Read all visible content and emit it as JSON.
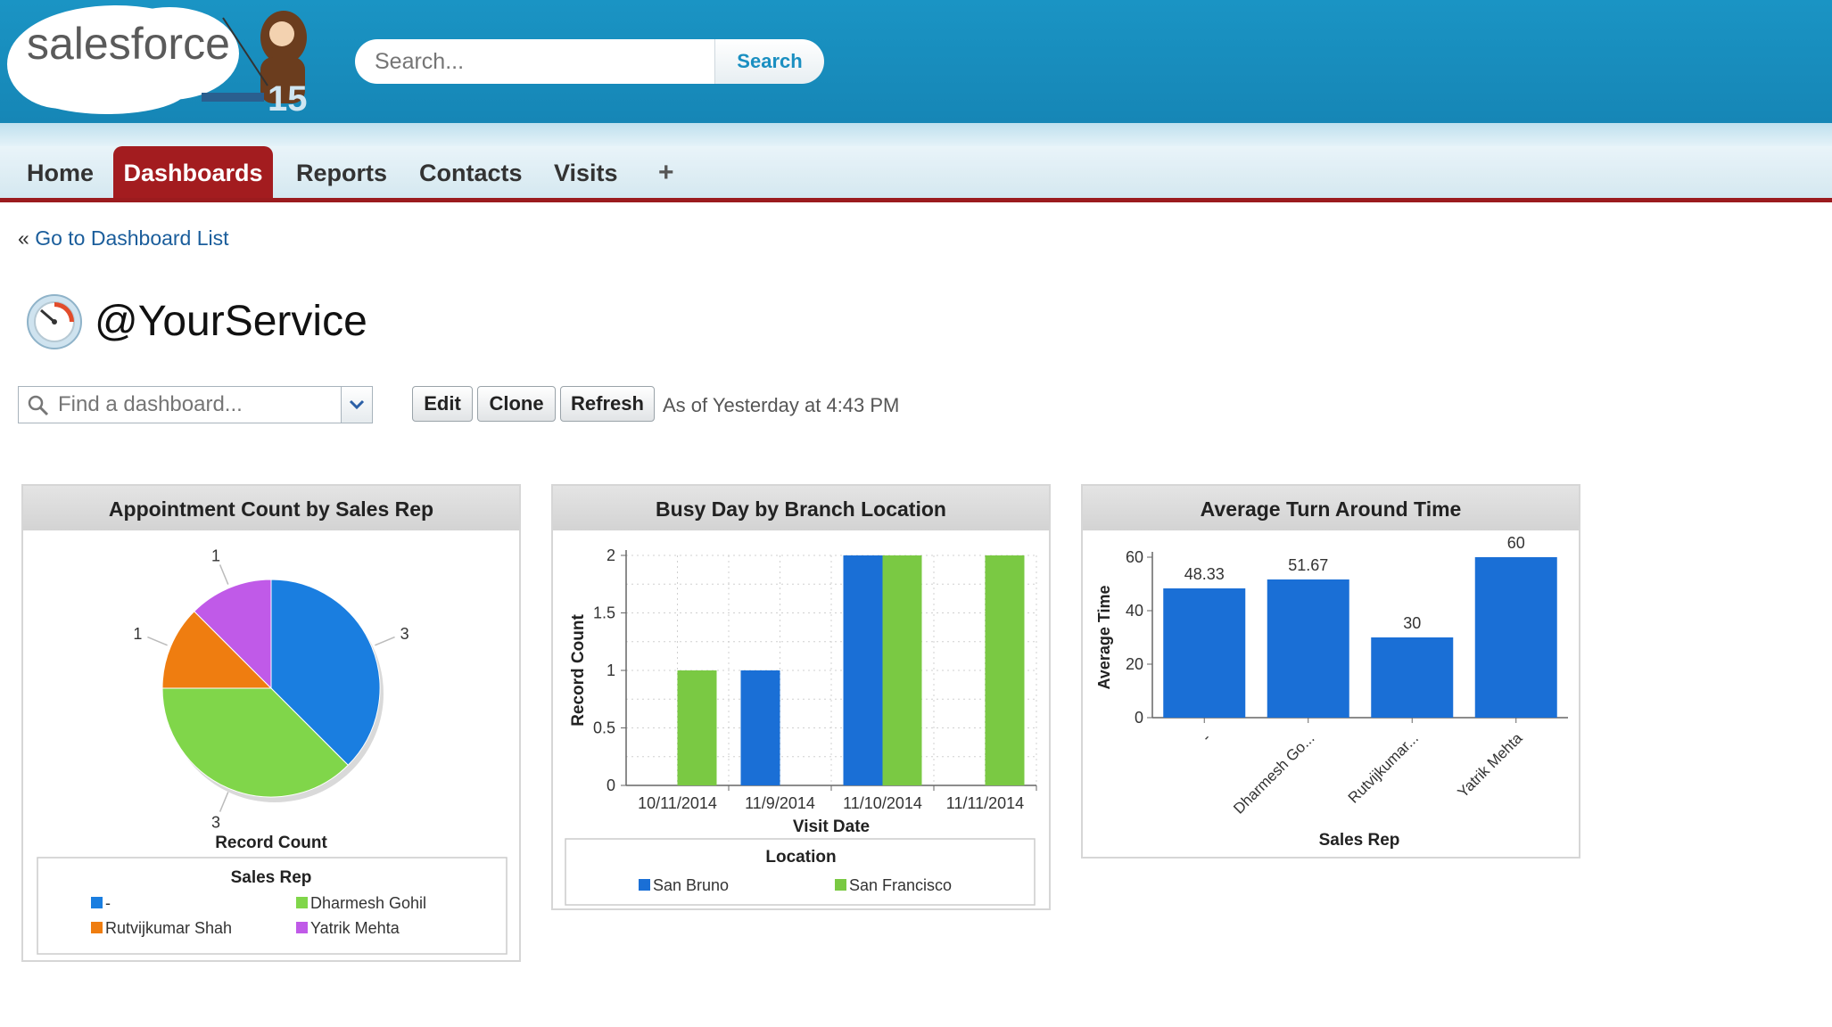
{
  "brand": {
    "logo_text": "salesforce",
    "release_badge": "15"
  },
  "search": {
    "placeholder": "Search...",
    "button_label": "Search"
  },
  "nav": {
    "tabs": [
      {
        "label": "Home"
      },
      {
        "label": "Dashboards"
      },
      {
        "label": "Reports"
      },
      {
        "label": "Contacts"
      },
      {
        "label": "Visits"
      },
      {
        "label": "+"
      }
    ],
    "active": "Dashboards"
  },
  "back_link": {
    "prefix": "«",
    "label": "Go to Dashboard List"
  },
  "page": {
    "title": "@YourService",
    "icon": "dashboard-gauge-icon"
  },
  "toolbar": {
    "find_placeholder": "Find a dashboard...",
    "edit_label": "Edit",
    "clone_label": "Clone",
    "refresh_label": "Refresh",
    "as_of": "As of Yesterday at 4:43 PM"
  },
  "colors": {
    "header": "#1a94c4",
    "active_tab": "#a31c1f",
    "blue": "#1a6fd6",
    "green": "#7ac943",
    "orange": "#e8770f",
    "purple": "#b94ee3"
  },
  "chart_data": [
    {
      "type": "pie",
      "title": "Appointment Count by Sales Rep",
      "value_label": "Record Count",
      "legend_title": "Sales Rep",
      "slices": [
        {
          "name": "-",
          "value": 3,
          "color": "#1a7ee0"
        },
        {
          "name": "Dharmesh Gohil",
          "value": 3,
          "color": "#80d64a"
        },
        {
          "name": "Rutvijkumar Shah",
          "value": 1,
          "color": "#ef7d10"
        },
        {
          "name": "Yatrik Mehta",
          "value": 1,
          "color": "#c05ae8"
        }
      ],
      "legend_placement": "bottom"
    },
    {
      "type": "bar",
      "title": "Busy Day by Branch Location",
      "xlabel": "Visit Date",
      "ylabel": "Record Count",
      "ylim": [
        0,
        2
      ],
      "yticks": [
        "0",
        "0.5",
        "1",
        "1.5",
        "2"
      ],
      "categories": [
        "10/11/2014",
        "11/9/2014",
        "11/10/2014",
        "11/11/2014"
      ],
      "legend_title": "Location",
      "series": [
        {
          "name": "San Bruno",
          "values": [
            0,
            1,
            2,
            0
          ],
          "color": "#1a6fd6"
        },
        {
          "name": "San Francisco",
          "values": [
            1,
            0,
            2,
            2
          ],
          "color": "#7ac943"
        }
      ],
      "grid": true,
      "legend_placement": "bottom"
    },
    {
      "type": "bar",
      "title": "Average Turn Around Time",
      "xlabel": "Sales Rep",
      "ylabel": "Average Time",
      "ylim": [
        0,
        60
      ],
      "yticks": [
        "0",
        "20",
        "40",
        "60"
      ],
      "categories": [
        "-",
        "Dharmesh Go...",
        "Rutvijkumar...",
        "Yatrik Mehta"
      ],
      "values": [
        48.33,
        51.67,
        30,
        60
      ],
      "value_labels": [
        "48.33",
        "51.67",
        "30",
        "60"
      ],
      "color": "#1a6fd6"
    }
  ]
}
